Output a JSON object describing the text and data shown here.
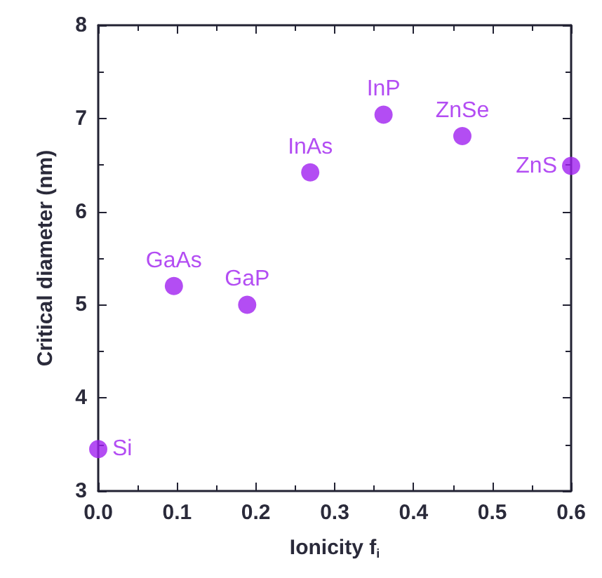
{
  "chart_data": {
    "type": "scatter",
    "xlabel": "Ionicity f$_{i}$",
    "ylabel": "Critical diameter (nm)",
    "x": [
      0.0,
      0.096,
      0.189,
      0.269,
      0.362,
      0.462,
      0.6
    ],
    "values": [
      3.45,
      5.2,
      5.0,
      6.42,
      7.04,
      6.81,
      6.49
    ],
    "color": "#a020f0",
    "marker": "circle",
    "grid": false,
    "xlim": [
      0,
      0.6
    ],
    "xticks": [
      {
        "value": 0,
        "label": "0.0"
      },
      0.1,
      0.2,
      0.3,
      0.4,
      0.5,
      0.6
    ],
    "ylim": [
      3,
      8
    ],
    "yticks": [
      3,
      4,
      5,
      6,
      7,
      8
    ],
    "annotations": [
      {
        "text": "Si",
        "x": 0.0,
        "y": 3.45
      },
      {
        "text": "GaAs",
        "x": 0.096,
        "y": 5.2
      },
      {
        "text": "GaP",
        "x": 0.189,
        "y": 5.0
      },
      {
        "text": "InAs",
        "x": 0.269,
        "y": 6.42
      },
      {
        "text": "InP",
        "x": 0.362,
        "y": 7.04
      },
      {
        "text": "ZnSe",
        "x": 0.462,
        "y": 6.81
      },
      {
        "text": "ZnS",
        "x": 0.6,
        "y": 6.49
      }
    ]
  }
}
